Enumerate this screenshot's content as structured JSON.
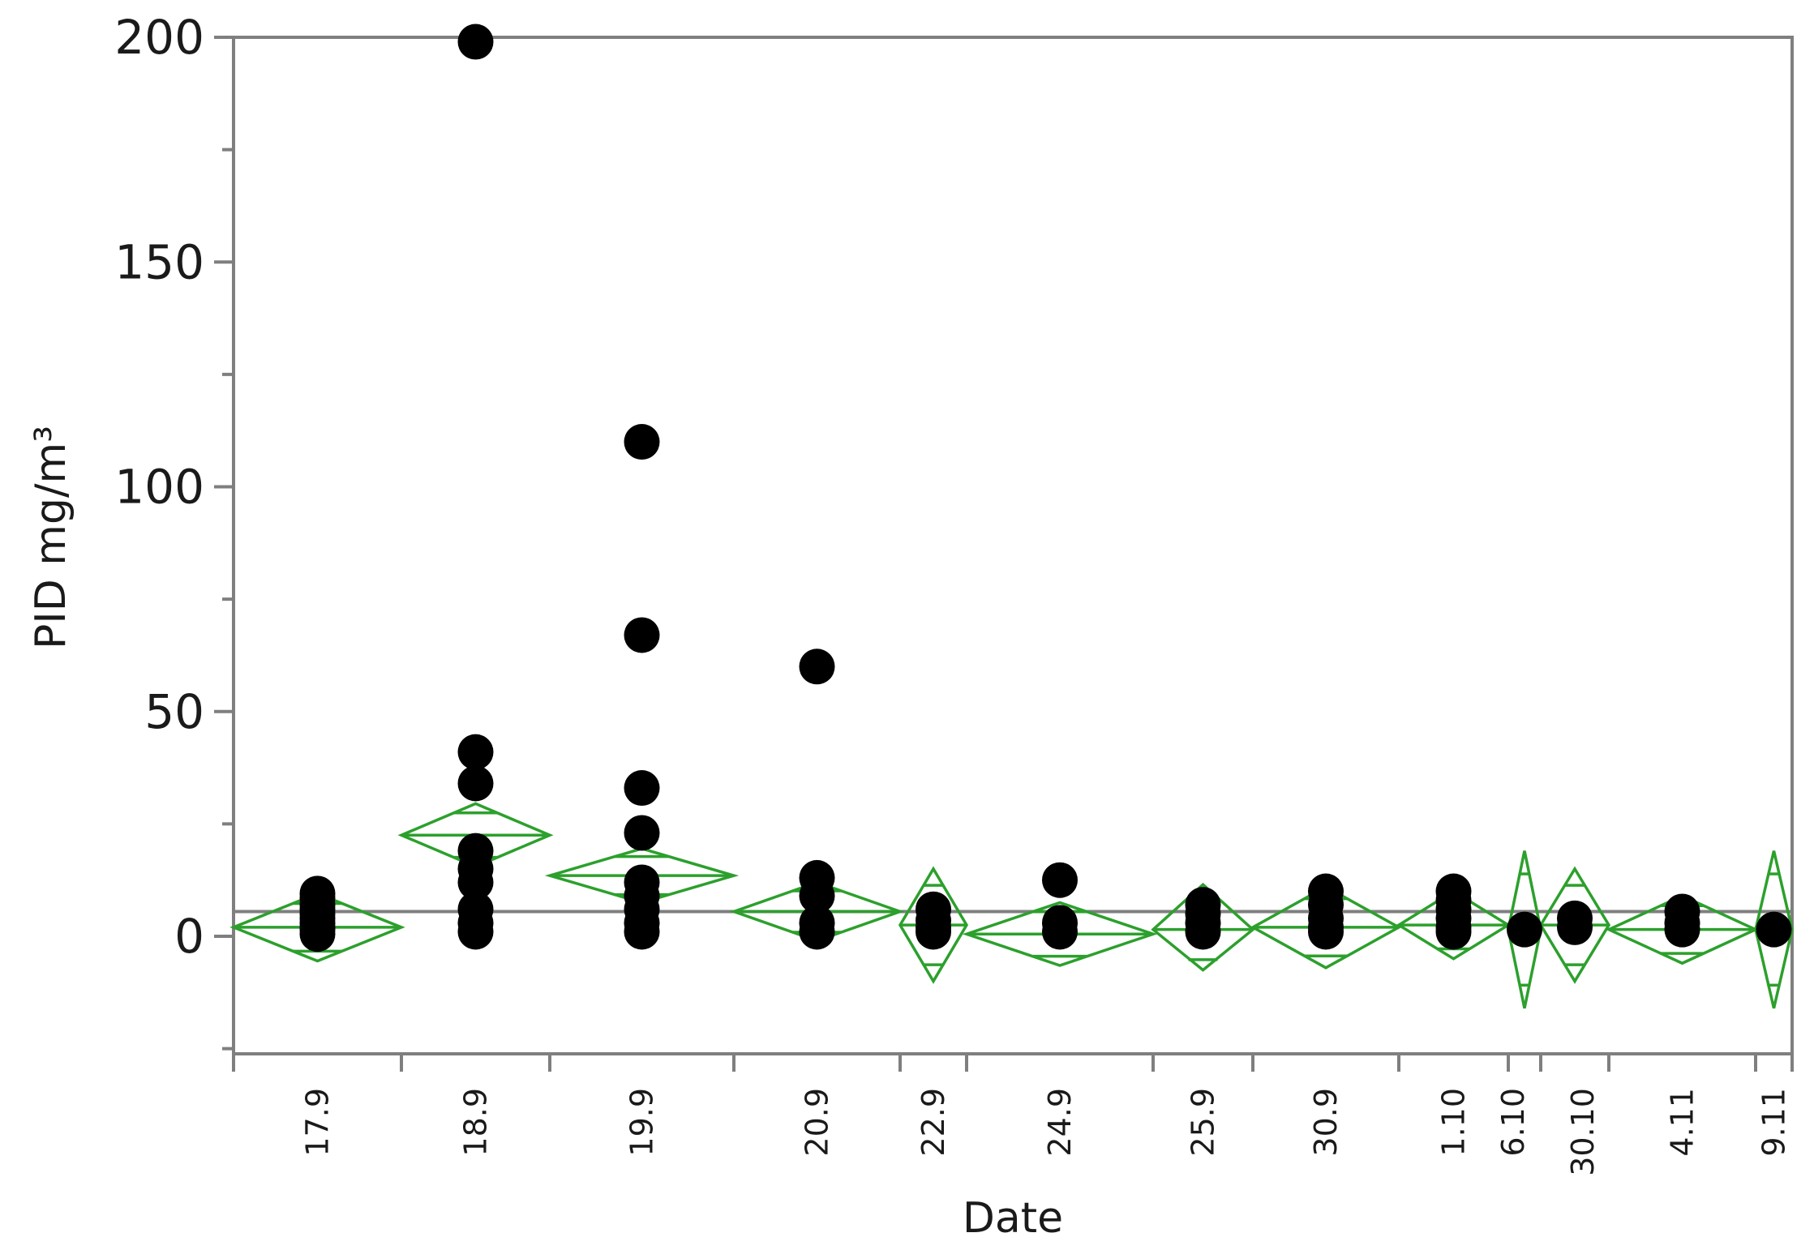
{
  "chart_data": {
    "type": "scatter",
    "title": "",
    "xlabel": "Date",
    "ylabel": "PID mg/m³",
    "ylim": [
      -25,
      200
    ],
    "yticks": [
      0,
      50,
      100,
      150,
      200
    ],
    "grand_mean": 5.5,
    "grid": false,
    "colors": {
      "points": "#000000",
      "diamonds": "#2ca02c",
      "axes": "#7f7f7f",
      "mean_line": "#7f7f7f"
    },
    "categories": [
      {
        "label": "17.9",
        "mean": 2,
        "ci": [
          -5.5,
          9.5
        ],
        "values": [
          0.5,
          1.5,
          2,
          3,
          4,
          5,
          6,
          7,
          8.5,
          9.5
        ]
      },
      {
        "label": "18.9",
        "mean": 22.5,
        "ci": [
          15.5,
          29.5
        ],
        "values": [
          199,
          41,
          34,
          19,
          15,
          12,
          6,
          3,
          1
        ]
      },
      {
        "label": "19.9",
        "mean": 13.5,
        "ci": [
          7.5,
          19.5
        ],
        "values": [
          110,
          67,
          33,
          23,
          12,
          9,
          6,
          3,
          1
        ]
      },
      {
        "label": "20.9",
        "mean": 5.5,
        "ci": [
          -1,
          12
        ],
        "values": [
          60,
          13,
          9,
          3,
          1
        ]
      },
      {
        "label": "22.9",
        "mean": 2.5,
        "ci": [
          -10,
          15
        ],
        "values": [
          6,
          3.5,
          2,
          1
        ]
      },
      {
        "label": "24.9",
        "mean": 0.5,
        "ci": [
          -6.5,
          7.5
        ],
        "values": [
          12.5,
          3,
          1
        ]
      },
      {
        "label": "25.9",
        "mean": 1.5,
        "ci": [
          -7.5,
          11.5
        ],
        "values": [
          7,
          5,
          3,
          1
        ]
      },
      {
        "label": "30.9",
        "mean": 2,
        "ci": [
          -7,
          11
        ],
        "values": [
          10,
          7,
          4,
          2,
          1
        ]
      },
      {
        "label": "1.10",
        "mean": 2.5,
        "ci": [
          -5,
          10
        ],
        "values": [
          10,
          8,
          6,
          4,
          2,
          1
        ]
      },
      {
        "label": "6.10",
        "mean": 1.5,
        "ci": [
          -16,
          19
        ],
        "values": [
          1.5
        ]
      },
      {
        "label": "30.10",
        "mean": 2.5,
        "ci": [
          -10,
          15
        ],
        "values": [
          4,
          2
        ]
      },
      {
        "label": "4.11",
        "mean": 1.5,
        "ci": [
          -6,
          9
        ],
        "values": [
          5.5,
          3,
          1.5
        ]
      },
      {
        "label": "9.11",
        "mean": 1.5,
        "ci": [
          -16,
          19
        ],
        "values": [
          1.5
        ]
      }
    ]
  }
}
